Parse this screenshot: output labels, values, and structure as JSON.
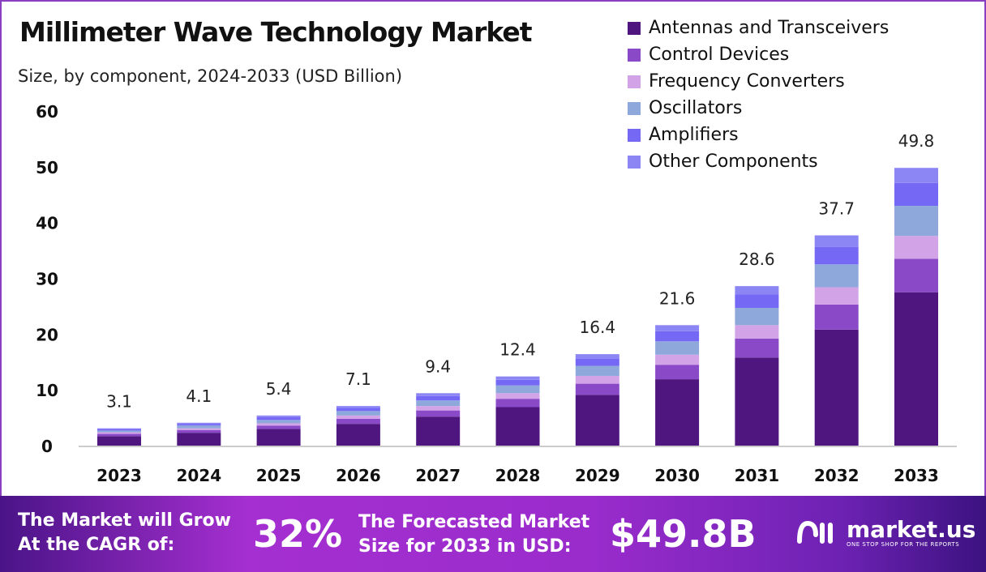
{
  "chart_data": {
    "type": "bar",
    "stacked": true,
    "title": "Millimeter Wave Technology Market",
    "subtitle": "Size, by component, 2024-2033 (USD Billion)",
    "categories": [
      "2023",
      "2024",
      "2025",
      "2026",
      "2027",
      "2028",
      "2029",
      "2030",
      "2031",
      "2032",
      "2033"
    ],
    "totals": [
      "3.1",
      "4.1",
      "5.4",
      "7.1",
      "9.4",
      "12.4",
      "16.4",
      "21.6",
      "28.6",
      "37.7",
      "49.8"
    ],
    "ylim": [
      0,
      60
    ],
    "yticks": [
      "0",
      "10",
      "20",
      "30",
      "40",
      "50",
      "60"
    ],
    "grid": false,
    "legend_position": "top-right",
    "series": [
      {
        "name": "Antennas and Transceivers",
        "color": "#4f1680",
        "values": [
          1.7,
          2.3,
          3.0,
          3.9,
          5.2,
          6.9,
          9.1,
          11.9,
          15.8,
          20.8,
          27.5
        ]
      },
      {
        "name": "Control Devices",
        "color": "#8a4ac8",
        "values": [
          0.4,
          0.5,
          0.6,
          0.9,
          1.1,
          1.5,
          2.0,
          2.6,
          3.4,
          4.5,
          6.0
        ]
      },
      {
        "name": "Frequency Converters",
        "color": "#d3a3e8",
        "values": [
          0.3,
          0.3,
          0.4,
          0.6,
          0.8,
          1.0,
          1.4,
          1.8,
          2.4,
          3.1,
          4.1
        ]
      },
      {
        "name": "Oscillators",
        "color": "#8fa8dc",
        "values": [
          0.3,
          0.5,
          0.6,
          0.8,
          1.0,
          1.4,
          1.8,
          2.4,
          3.1,
          4.1,
          5.4
        ]
      },
      {
        "name": "Amplifiers",
        "color": "#7468f5",
        "values": [
          0.3,
          0.3,
          0.5,
          0.6,
          0.8,
          1.0,
          1.3,
          1.8,
          2.4,
          3.1,
          4.1
        ]
      },
      {
        "name": "Other Components",
        "color": "#8c86f5",
        "values": [
          0.1,
          0.2,
          0.3,
          0.3,
          0.5,
          0.6,
          0.8,
          1.1,
          1.5,
          2.1,
          2.7
        ]
      }
    ]
  },
  "footer": {
    "cagr_label_1": "The Market will Grow",
    "cagr_label_2": "At the CAGR of:",
    "cagr_value": "32%",
    "forecast_label_1": "The Forecasted Market",
    "forecast_label_2": "Size for 2033 in USD:",
    "forecast_value": "$49.8B",
    "brand": "market.us",
    "tagline": "ONE STOP SHOP FOR THE REPORTS"
  }
}
